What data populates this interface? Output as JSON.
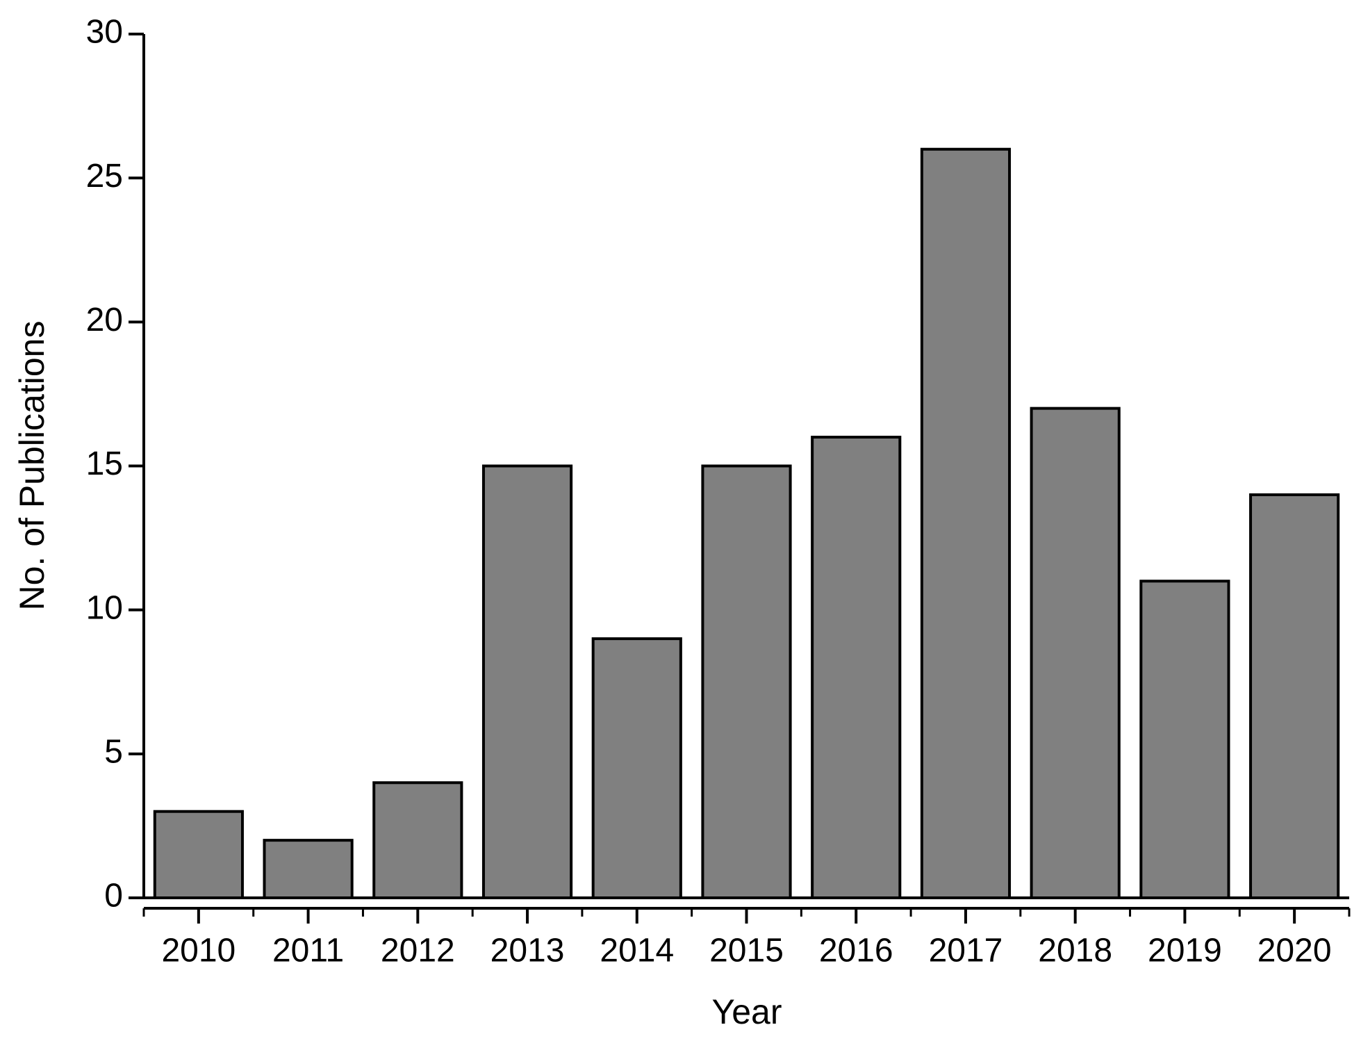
{
  "chart_data": {
    "type": "bar",
    "x_label": "Year",
    "y_label": "No. of Publications",
    "categories": [
      "2010",
      "2011",
      "2012",
      "2013",
      "2014",
      "2015",
      "2016",
      "2017",
      "2018",
      "2019",
      "2020"
    ],
    "values": [
      3,
      2,
      4,
      15,
      9,
      15,
      16,
      26,
      17,
      11,
      14
    ],
    "color": "#808080",
    "ylim": [
      0,
      30
    ],
    "yticks": [
      0,
      5,
      10,
      15,
      20,
      25,
      30
    ],
    "grid": false
  }
}
